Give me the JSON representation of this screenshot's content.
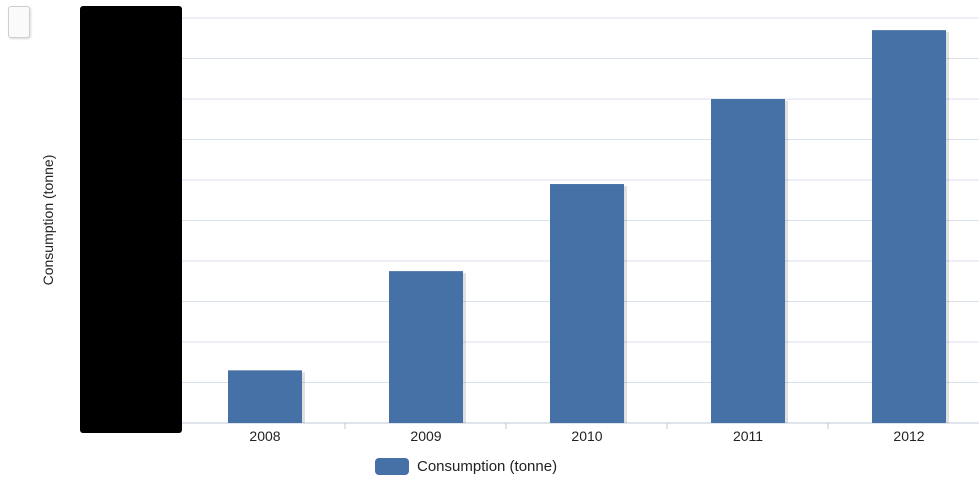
{
  "chart_data": {
    "type": "bar",
    "categories": [
      "2008",
      "2009",
      "2010",
      "2011",
      "2012"
    ],
    "series": [
      {
        "name": "Consumption (tonne)",
        "values": [
          1.3,
          3.75,
          5.9,
          8.0,
          9.7
        ]
      }
    ],
    "title": "",
    "xlabel": "",
    "ylabel": "Consumption (tonne)",
    "ylim": [
      0,
      10
    ],
    "grid": true,
    "legend": "bottom",
    "bar_color": "#4571a7"
  }
}
